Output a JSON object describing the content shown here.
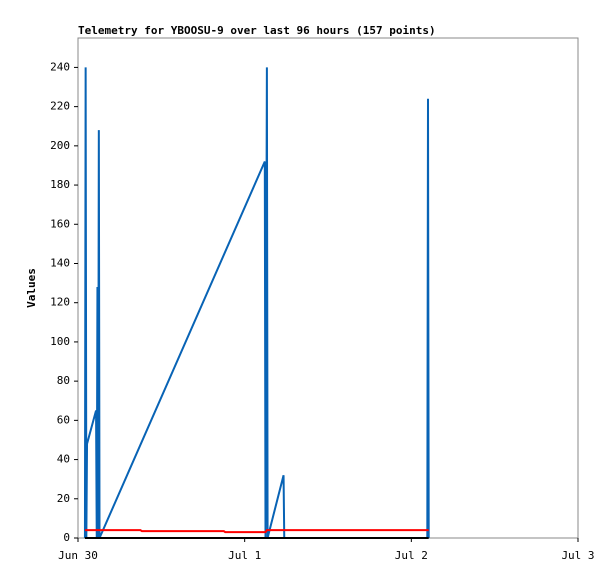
{
  "chart_data": {
    "type": "line",
    "title": "Telemetry for YBOOSU-9 over last 96 hours (157 points)",
    "y_label": "Values",
    "xlim": [
      0,
      72
    ],
    "xticks": [
      {
        "value": 0,
        "label": "Jun 30"
      },
      {
        "value": 24,
        "label": "Jul 1"
      },
      {
        "value": 48,
        "label": "Jul 2"
      },
      {
        "value": 72,
        "label": "Jul 3"
      }
    ],
    "ylim": [
      0,
      255
    ],
    "yticks": [
      0,
      20,
      40,
      60,
      80,
      100,
      120,
      140,
      160,
      180,
      200,
      220,
      240
    ],
    "series": [
      {
        "color": "#0863b5",
        "x": [
          1.0,
          1.1,
          1.2,
          1.3,
          2.6,
          2.7,
          2.8,
          2.9,
          3.0,
          3.1,
          26.9,
          27.0,
          27.2,
          27.3,
          29.6,
          29.7,
          50.3,
          50.4,
          50.5
        ],
        "values": [
          0,
          240,
          0,
          48,
          65,
          0,
          128,
          0,
          208,
          0,
          192,
          0,
          240,
          0,
          32,
          0,
          0,
          224,
          0
        ]
      },
      {
        "color": "#ff0000",
        "x": [
          1.0,
          9.0,
          9.2,
          21.0,
          21.2,
          27.0,
          27.2,
          50.5
        ],
        "values": [
          4,
          4,
          3.5,
          3.5,
          3,
          3,
          4,
          4
        ]
      },
      {
        "color": "#000000",
        "x": [
          1.0,
          50.5
        ],
        "values": [
          0,
          0
        ]
      }
    ]
  }
}
